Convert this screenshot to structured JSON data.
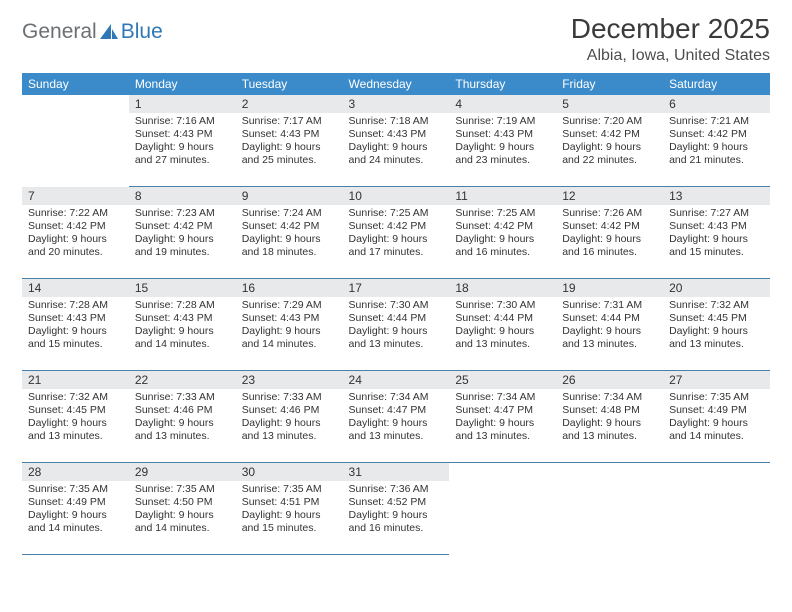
{
  "logo": {
    "text1": "General",
    "text2": "Blue"
  },
  "title": "December 2025",
  "subtitle": "Albia, Iowa, United States",
  "colors": {
    "header_bg": "#3b8bca",
    "header_text": "#ffffff",
    "daynum_bg": "#e7e9eb",
    "row_border": "#4a7fa8",
    "body_text": "#333333",
    "logo_gray": "#6b7074",
    "logo_blue": "#2f78b7"
  },
  "day_names": [
    "Sunday",
    "Monday",
    "Tuesday",
    "Wednesday",
    "Thursday",
    "Friday",
    "Saturday"
  ],
  "weeks": [
    [
      null,
      {
        "n": "1",
        "sr": "7:16 AM",
        "ss": "4:43 PM",
        "dl": "9 hours and 27 minutes."
      },
      {
        "n": "2",
        "sr": "7:17 AM",
        "ss": "4:43 PM",
        "dl": "9 hours and 25 minutes."
      },
      {
        "n": "3",
        "sr": "7:18 AM",
        "ss": "4:43 PM",
        "dl": "9 hours and 24 minutes."
      },
      {
        "n": "4",
        "sr": "7:19 AM",
        "ss": "4:43 PM",
        "dl": "9 hours and 23 minutes."
      },
      {
        "n": "5",
        "sr": "7:20 AM",
        "ss": "4:42 PM",
        "dl": "9 hours and 22 minutes."
      },
      {
        "n": "6",
        "sr": "7:21 AM",
        "ss": "4:42 PM",
        "dl": "9 hours and 21 minutes."
      }
    ],
    [
      {
        "n": "7",
        "sr": "7:22 AM",
        "ss": "4:42 PM",
        "dl": "9 hours and 20 minutes."
      },
      {
        "n": "8",
        "sr": "7:23 AM",
        "ss": "4:42 PM",
        "dl": "9 hours and 19 minutes."
      },
      {
        "n": "9",
        "sr": "7:24 AM",
        "ss": "4:42 PM",
        "dl": "9 hours and 18 minutes."
      },
      {
        "n": "10",
        "sr": "7:25 AM",
        "ss": "4:42 PM",
        "dl": "9 hours and 17 minutes."
      },
      {
        "n": "11",
        "sr": "7:25 AM",
        "ss": "4:42 PM",
        "dl": "9 hours and 16 minutes."
      },
      {
        "n": "12",
        "sr": "7:26 AM",
        "ss": "4:42 PM",
        "dl": "9 hours and 16 minutes."
      },
      {
        "n": "13",
        "sr": "7:27 AM",
        "ss": "4:43 PM",
        "dl": "9 hours and 15 minutes."
      }
    ],
    [
      {
        "n": "14",
        "sr": "7:28 AM",
        "ss": "4:43 PM",
        "dl": "9 hours and 15 minutes."
      },
      {
        "n": "15",
        "sr": "7:28 AM",
        "ss": "4:43 PM",
        "dl": "9 hours and 14 minutes."
      },
      {
        "n": "16",
        "sr": "7:29 AM",
        "ss": "4:43 PM",
        "dl": "9 hours and 14 minutes."
      },
      {
        "n": "17",
        "sr": "7:30 AM",
        "ss": "4:44 PM",
        "dl": "9 hours and 13 minutes."
      },
      {
        "n": "18",
        "sr": "7:30 AM",
        "ss": "4:44 PM",
        "dl": "9 hours and 13 minutes."
      },
      {
        "n": "19",
        "sr": "7:31 AM",
        "ss": "4:44 PM",
        "dl": "9 hours and 13 minutes."
      },
      {
        "n": "20",
        "sr": "7:32 AM",
        "ss": "4:45 PM",
        "dl": "9 hours and 13 minutes."
      }
    ],
    [
      {
        "n": "21",
        "sr": "7:32 AM",
        "ss": "4:45 PM",
        "dl": "9 hours and 13 minutes."
      },
      {
        "n": "22",
        "sr": "7:33 AM",
        "ss": "4:46 PM",
        "dl": "9 hours and 13 minutes."
      },
      {
        "n": "23",
        "sr": "7:33 AM",
        "ss": "4:46 PM",
        "dl": "9 hours and 13 minutes."
      },
      {
        "n": "24",
        "sr": "7:34 AM",
        "ss": "4:47 PM",
        "dl": "9 hours and 13 minutes."
      },
      {
        "n": "25",
        "sr": "7:34 AM",
        "ss": "4:47 PM",
        "dl": "9 hours and 13 minutes."
      },
      {
        "n": "26",
        "sr": "7:34 AM",
        "ss": "4:48 PM",
        "dl": "9 hours and 13 minutes."
      },
      {
        "n": "27",
        "sr": "7:35 AM",
        "ss": "4:49 PM",
        "dl": "9 hours and 14 minutes."
      }
    ],
    [
      {
        "n": "28",
        "sr": "7:35 AM",
        "ss": "4:49 PM",
        "dl": "9 hours and 14 minutes."
      },
      {
        "n": "29",
        "sr": "7:35 AM",
        "ss": "4:50 PM",
        "dl": "9 hours and 14 minutes."
      },
      {
        "n": "30",
        "sr": "7:35 AM",
        "ss": "4:51 PM",
        "dl": "9 hours and 15 minutes."
      },
      {
        "n": "31",
        "sr": "7:36 AM",
        "ss": "4:52 PM",
        "dl": "9 hours and 16 minutes."
      },
      null,
      null,
      null
    ]
  ],
  "labels": {
    "sunrise": "Sunrise:",
    "sunset": "Sunset:",
    "daylight": "Daylight:"
  }
}
